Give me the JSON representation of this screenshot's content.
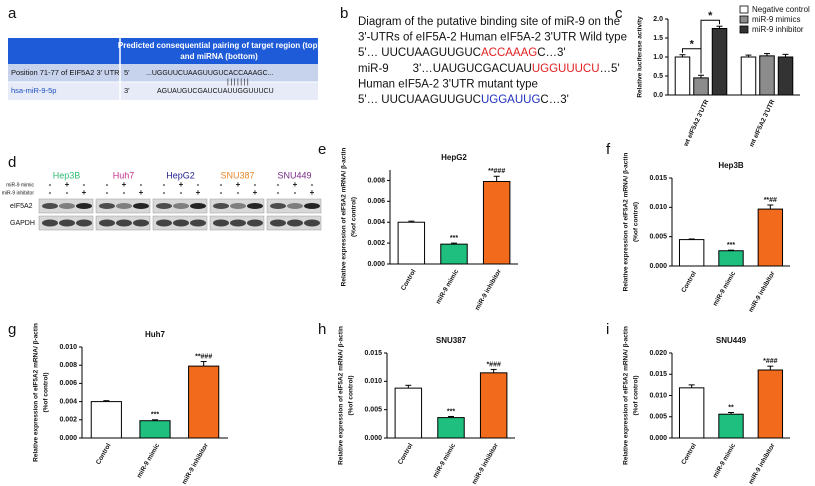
{
  "panel_labels": [
    "a",
    "b",
    "c",
    "d",
    "e",
    "f",
    "g",
    "h",
    "i"
  ],
  "table": {
    "header": [
      "Predicted consequential pairing of target region (top)",
      "and miRNA (bottom)"
    ],
    "rows": [
      [
        "Position 71-77 of EIF5A2 3' UTR",
        "5'",
        "...UGGUUCUAAGUUGUCACCAAAGC..."
      ],
      [
        "hsa-miR-9-5p",
        "3'",
        "AGUAUGUCGAUCUAUUGGUUUCU"
      ]
    ],
    "pairing": "|||||||"
  },
  "diagram": {
    "lines": [
      [
        {
          "text": "Diagram of the putative binding site of miR-9 on the"
        }
      ],
      [
        {
          "text": "3'-UTRs of eIF5A-2 Human eIF5A-2 3'UTR Wild type"
        }
      ],
      [
        {
          "text": "5'… UUCUAAGUUGUC"
        },
        {
          "text": "ACCAAAG",
          "color": "#e02020"
        },
        {
          "text": "C…3'"
        }
      ],
      [
        {
          "text": "miR-9"
        },
        {
          "text": "3'…UAUGUCGACUAU"
        },
        {
          "text": "UGGUUUCU",
          "color": "#e02020"
        },
        {
          "text": "…5'"
        }
      ],
      [
        {
          "text": "Human eIF5A-2 3'UTR mutant type"
        }
      ],
      [
        {
          "text": "5'… UUCUAAGUUGUC"
        },
        {
          "text": "UGGAUUG",
          "color": "#2030c0"
        },
        {
          "text": "C…3'"
        }
      ]
    ]
  },
  "blot": {
    "cell_lines": [
      {
        "name": "Hep3B",
        "color": "#2eb872"
      },
      {
        "name": "Huh7",
        "color": "#c0308b"
      },
      {
        "name": "HepG2",
        "color": "#23238e"
      },
      {
        "name": "SNU387",
        "color": "#e8892b"
      },
      {
        "name": "SNU449",
        "color": "#7b2a8b"
      }
    ],
    "treatments": [
      "miR-9 mimic",
      "miR-9 inhibitor"
    ],
    "signs": [
      [
        "-",
        "+",
        "-"
      ],
      [
        "-",
        "-",
        "+"
      ]
    ],
    "bands": [
      "eIF5A2",
      "GAPDH"
    ]
  },
  "chart_data": [
    {
      "type": "grouped_bar",
      "ylabel": "Relative luciferase activity",
      "categories": [
        "wt eIF5A2 3'UTR",
        "mt eIF5A2 3'UTR"
      ],
      "series": [
        {
          "name": "Negative control",
          "color": "#ffffff",
          "values": [
            1.0,
            1.0
          ],
          "errors": [
            0.06,
            0.05
          ]
        },
        {
          "name": "miR-9 mimics",
          "color": "#8c8c8c",
          "values": [
            0.45,
            1.03
          ],
          "errors": [
            0.07,
            0.06
          ]
        },
        {
          "name": "miR-9 inhibitor",
          "color": "#333333",
          "values": [
            1.75,
            1.0
          ],
          "errors": [
            0.06,
            0.07
          ]
        }
      ],
      "ylim": [
        0,
        2.0
      ],
      "yticks": [
        {
          "value": 0,
          "label": "0.0"
        },
        0.5,
        {
          "value": 1,
          "label": "1.0"
        },
        1.5,
        {
          "value": 2,
          "label": "2.0"
        }
      ],
      "annotations": [
        "*",
        "*"
      ],
      "legend": "upper right"
    },
    {
      "type": "bar",
      "title": "HepG2",
      "ylabel": [
        "Relative expression of eIF5A2 mRNA/ β-actin",
        "(%of control)"
      ],
      "categories": [
        "Control",
        "miR-9 mimic",
        "miR-9 inhibitor"
      ],
      "colors": [
        "#ffffff",
        "#1fbf7f",
        "#f26b1d"
      ],
      "values": [
        0.004,
        0.0019,
        0.0079
      ],
      "errors": [
        0.0001,
        0.0001,
        0.0005
      ],
      "annotations": [
        null,
        "***",
        "**###"
      ],
      "ylim": [
        0,
        0.009
      ],
      "yticks": [
        {
          "value": 0,
          "label": "0.000"
        },
        0.002,
        0.004,
        0.006,
        0.008
      ]
    },
    {
      "type": "bar",
      "title": "Hep3B",
      "ylabel": [
        "Relative expression of eIF5A2 mRNA/ β-actin",
        "(%of control)"
      ],
      "categories": [
        "Control",
        "miR-9 mimic",
        "miR-9 inhibitor"
      ],
      "colors": [
        "#ffffff",
        "#1fbf7f",
        "#f26b1d"
      ],
      "values": [
        0.0045,
        0.0026,
        0.0097
      ],
      "errors": [
        0.0001,
        0.0001,
        0.0007
      ],
      "annotations": [
        null,
        "***",
        "**##"
      ],
      "ylim": [
        0,
        0.015
      ],
      "yticks": [
        {
          "value": 0,
          "label": "0.000"
        },
        0.005,
        {
          "value": 0.01,
          "label": "0.010"
        },
        0.015
      ]
    },
    {
      "type": "bar",
      "title": "Huh7",
      "ylabel": [
        "Relative expression of eIF5A2 mRNA/ β-actin",
        "(%of control)"
      ],
      "categories": [
        "Control",
        "miR-9 mimic",
        "miR-9 inhibitor"
      ],
      "colors": [
        "#ffffff",
        "#1fbf7f",
        "#f26b1d"
      ],
      "values": [
        0.004,
        0.0019,
        0.0079
      ],
      "errors": [
        0.0001,
        0.0001,
        0.0005
      ],
      "annotations": [
        null,
        "***",
        "**###"
      ],
      "ylim": [
        0,
        0.01
      ],
      "yticks": [
        {
          "value": 0,
          "label": "0.000"
        },
        0.002,
        0.004,
        0.006,
        0.008,
        {
          "value": 0.01,
          "label": "0.010"
        }
      ]
    },
    {
      "type": "bar",
      "title": "SNU387",
      "ylabel": [
        "Relative expression of eIF5A2 mRNA/ β-actin",
        "(%of control)"
      ],
      "categories": [
        "Control",
        "miR-9 mimic",
        "miR-9 inhibitor"
      ],
      "colors": [
        "#ffffff",
        "#1fbf7f",
        "#f26b1d"
      ],
      "values": [
        0.0088,
        0.0036,
        0.0115
      ],
      "errors": [
        0.0005,
        0.0002,
        0.0006
      ],
      "annotations": [
        null,
        "***",
        "*###"
      ],
      "ylim": [
        0,
        0.015
      ],
      "yticks": [
        {
          "value": 0,
          "label": "0.000"
        },
        0.005,
        {
          "value": 0.01,
          "label": "0.010"
        },
        0.015
      ]
    },
    {
      "type": "bar",
      "title": "SNU449",
      "ylabel": [
        "Relative expression of eIF5A2 mRNA/ β-actin",
        "(%of control)"
      ],
      "categories": [
        "Control",
        "miR-9 mimic",
        "miR-9 inhibitor"
      ],
      "colors": [
        "#ffffff",
        "#1fbf7f",
        "#f26b1d"
      ],
      "values": [
        0.0118,
        0.0056,
        0.016
      ],
      "errors": [
        0.0007,
        0.0004,
        0.0009
      ],
      "annotations": [
        null,
        "**",
        "*###"
      ],
      "ylim": [
        0,
        0.02
      ],
      "yticks": [
        {
          "value": 0,
          "label": "0.000"
        },
        0.005,
        {
          "value": 0.01,
          "label": "0.010"
        },
        0.015,
        {
          "value": 0.02,
          "label": "0.020"
        }
      ]
    }
  ]
}
